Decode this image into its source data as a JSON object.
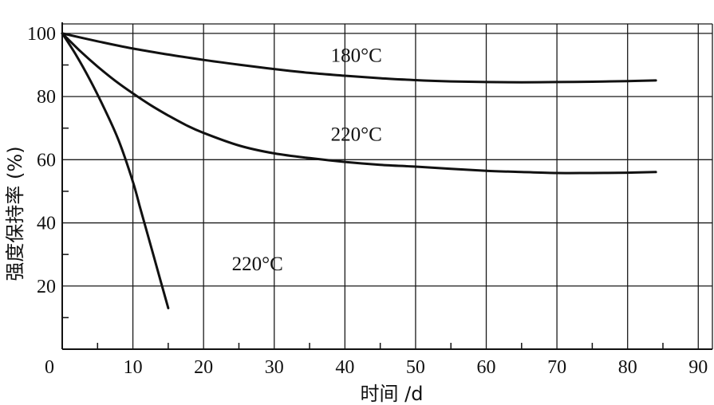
{
  "chart_data": {
    "type": "line",
    "xlabel": "时间 /d",
    "ylabel": "强度保持率 (%)",
    "xlim": [
      0,
      92
    ],
    "ylim": [
      0,
      103
    ],
    "x_ticks": [
      0,
      10,
      20,
      30,
      40,
      50,
      60,
      70,
      80,
      90
    ],
    "x_tick_labels": [
      "0",
      "10",
      "20",
      "30",
      "40",
      "50",
      "60",
      "70",
      "80",
      "90"
    ],
    "y_ticks": [
      20,
      40,
      60,
      80,
      100
    ],
    "y_tick_labels": [
      "20",
      "40",
      "60",
      "80",
      "100"
    ],
    "y_minor_ticks": [
      10,
      30,
      50,
      70,
      90
    ],
    "grid": true,
    "line_color": "#111111",
    "grid_color": "#1a1a1a",
    "series": [
      {
        "label": "180°C",
        "label_at": [
          38,
          91
        ],
        "points": [
          [
            0,
            100
          ],
          [
            5,
            97.5
          ],
          [
            10,
            95.2
          ],
          [
            15,
            93.3
          ],
          [
            20,
            91.6
          ],
          [
            25,
            90.1
          ],
          [
            30,
            88.7
          ],
          [
            35,
            87.5
          ],
          [
            40,
            86.6
          ],
          [
            45,
            85.8
          ],
          [
            50,
            85.2
          ],
          [
            55,
            84.8
          ],
          [
            60,
            84.6
          ],
          [
            65,
            84.5
          ],
          [
            70,
            84.6
          ],
          [
            75,
            84.7
          ],
          [
            80,
            84.9
          ],
          [
            84,
            85.1
          ]
        ]
      },
      {
        "label": "220°C",
        "label_at": [
          38,
          66
        ],
        "points": [
          [
            0,
            100
          ],
          [
            2.5,
            94.5
          ],
          [
            5,
            89.5
          ],
          [
            7.5,
            85
          ],
          [
            10,
            81
          ],
          [
            12.5,
            77.3
          ],
          [
            15,
            74
          ],
          [
            17.5,
            71
          ],
          [
            20,
            68.5
          ],
          [
            25,
            64.5
          ],
          [
            30,
            62
          ],
          [
            35,
            60.5
          ],
          [
            40,
            59.3
          ],
          [
            45,
            58.4
          ],
          [
            50,
            57.8
          ],
          [
            55,
            57.1
          ],
          [
            60,
            56.5
          ],
          [
            65,
            56.1
          ],
          [
            70,
            55.8
          ],
          [
            75,
            55.8
          ],
          [
            80,
            55.9
          ],
          [
            84,
            56.1
          ]
        ]
      },
      {
        "label": "220°C",
        "label_at": [
          24,
          25
        ],
        "points": [
          [
            0,
            100
          ],
          [
            2,
            93
          ],
          [
            4,
            85
          ],
          [
            6,
            76
          ],
          [
            8,
            66
          ],
          [
            10,
            53
          ],
          [
            11,
            45
          ],
          [
            12,
            37
          ],
          [
            13,
            29
          ],
          [
            14,
            21
          ],
          [
            15,
            13
          ]
        ]
      }
    ]
  }
}
